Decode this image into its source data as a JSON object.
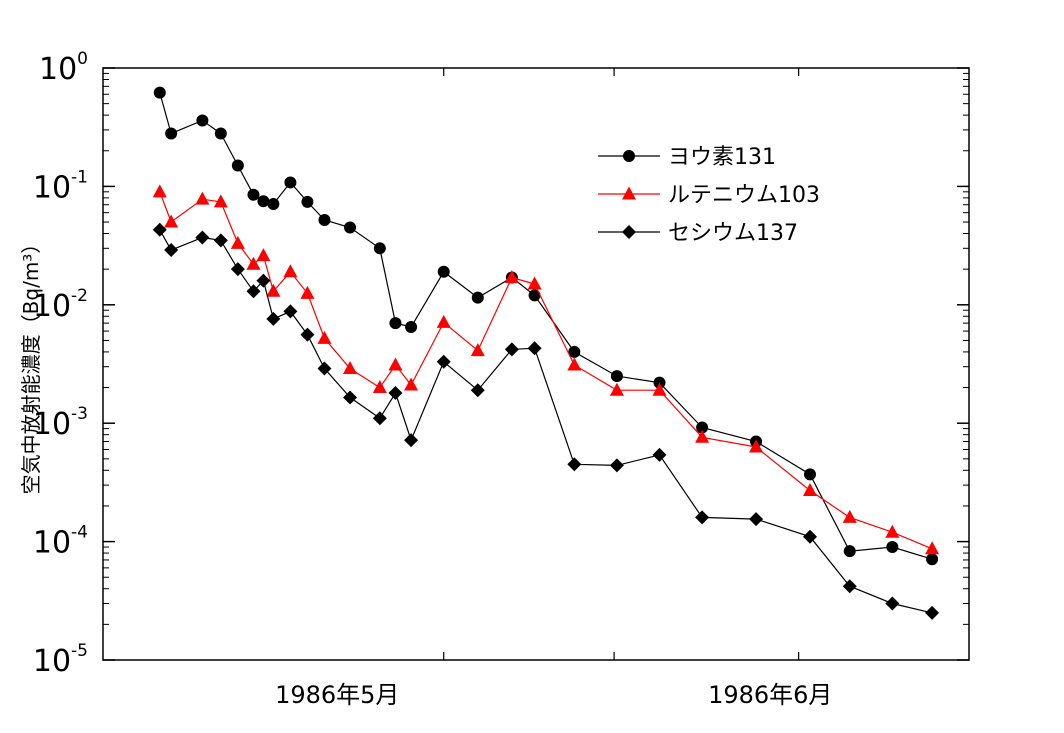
{
  "chart_data": {
    "type": "line",
    "title": "",
    "ylabel": "空気中放射能濃度（Bq/m³）",
    "xlabel": "",
    "yscale": "log",
    "ylim": [
      1e-05,
      1
    ],
    "xlim": [
      1,
      62
    ],
    "x_tick_labels": [
      {
        "x": 17.5,
        "label": "1986年5月"
      },
      {
        "x": 48,
        "label": "1986年6月"
      }
    ],
    "x_gridlines": [
      25,
      37,
      50
    ],
    "y_ticks": [
      {
        "base": "10",
        "exp": "0",
        "value": 1
      },
      {
        "base": "10",
        "exp": "-1",
        "value": 0.1
      },
      {
        "base": "10",
        "exp": "-2",
        "value": 0.01
      },
      {
        "base": "10",
        "exp": "-3",
        "value": 0.001
      },
      {
        "base": "10",
        "exp": "-4",
        "value": 0.0001
      },
      {
        "base": "10",
        "exp": "-5",
        "value": 1e-05
      }
    ],
    "legend_position": "top-right",
    "series": [
      {
        "name": "ヨウ素131",
        "marker": "circle",
        "color": "#000000",
        "x": [
          5,
          5.8,
          8,
          9.3,
          10.5,
          11.6,
          12.3,
          13,
          14.2,
          15.4,
          16.6,
          18.4,
          20.5,
          21.6,
          22.7,
          25,
          27.4,
          29.8,
          31.4,
          34.2,
          37.2,
          40.2,
          43.2,
          47,
          50.8,
          53.6,
          56.6,
          59.4
        ],
        "values": [
          0.62,
          0.28,
          0.36,
          0.28,
          0.15,
          0.085,
          0.075,
          0.071,
          0.108,
          0.074,
          0.052,
          0.045,
          0.03,
          0.007,
          0.0065,
          0.019,
          0.0115,
          0.017,
          0.012,
          0.004,
          0.0025,
          0.0022,
          0.00092,
          0.0007,
          0.00037,
          8.3e-05,
          9e-05,
          7.1e-05
        ]
      },
      {
        "name": "ルテニウム103",
        "marker": "triangle",
        "color": "#ff0000",
        "x": [
          5,
          5.8,
          8,
          9.3,
          10.5,
          11.6,
          12.3,
          13,
          14.2,
          15.4,
          16.6,
          18.4,
          20.5,
          21.6,
          22.7,
          25,
          27.4,
          29.8,
          31.4,
          34.2,
          37.2,
          40.2,
          43.2,
          47,
          50.8,
          53.6,
          56.6,
          59.4
        ],
        "values": [
          0.09,
          0.05,
          0.078,
          0.074,
          0.033,
          0.022,
          0.026,
          0.013,
          0.019,
          0.0125,
          0.0052,
          0.0029,
          0.002,
          0.0031,
          0.0021,
          0.0071,
          0.0041,
          0.017,
          0.015,
          0.0031,
          0.0019,
          0.0019,
          0.00076,
          0.00063,
          0.00027,
          0.00016,
          0.00012,
          8.7e-05
        ]
      },
      {
        "name": "セシウム137",
        "marker": "diamond",
        "color": "#000000",
        "x": [
          5,
          5.8,
          8,
          9.3,
          10.5,
          11.6,
          12.3,
          13,
          14.2,
          15.4,
          16.6,
          18.4,
          20.5,
          21.6,
          22.7,
          25,
          27.4,
          29.8,
          31.4,
          34.2,
          37.2,
          40.2,
          43.2,
          47,
          50.8,
          53.6,
          56.6,
          59.4
        ],
        "values": [
          0.043,
          0.029,
          0.037,
          0.035,
          0.02,
          0.013,
          0.016,
          0.0076,
          0.0088,
          0.0056,
          0.0029,
          0.00165,
          0.0011,
          0.0018,
          0.00072,
          0.0033,
          0.0019,
          0.0042,
          0.0043,
          0.00045,
          0.00044,
          0.00054,
          0.00016,
          0.000155,
          0.00011,
          4.2e-05,
          3e-05,
          2.5e-05
        ]
      }
    ]
  }
}
